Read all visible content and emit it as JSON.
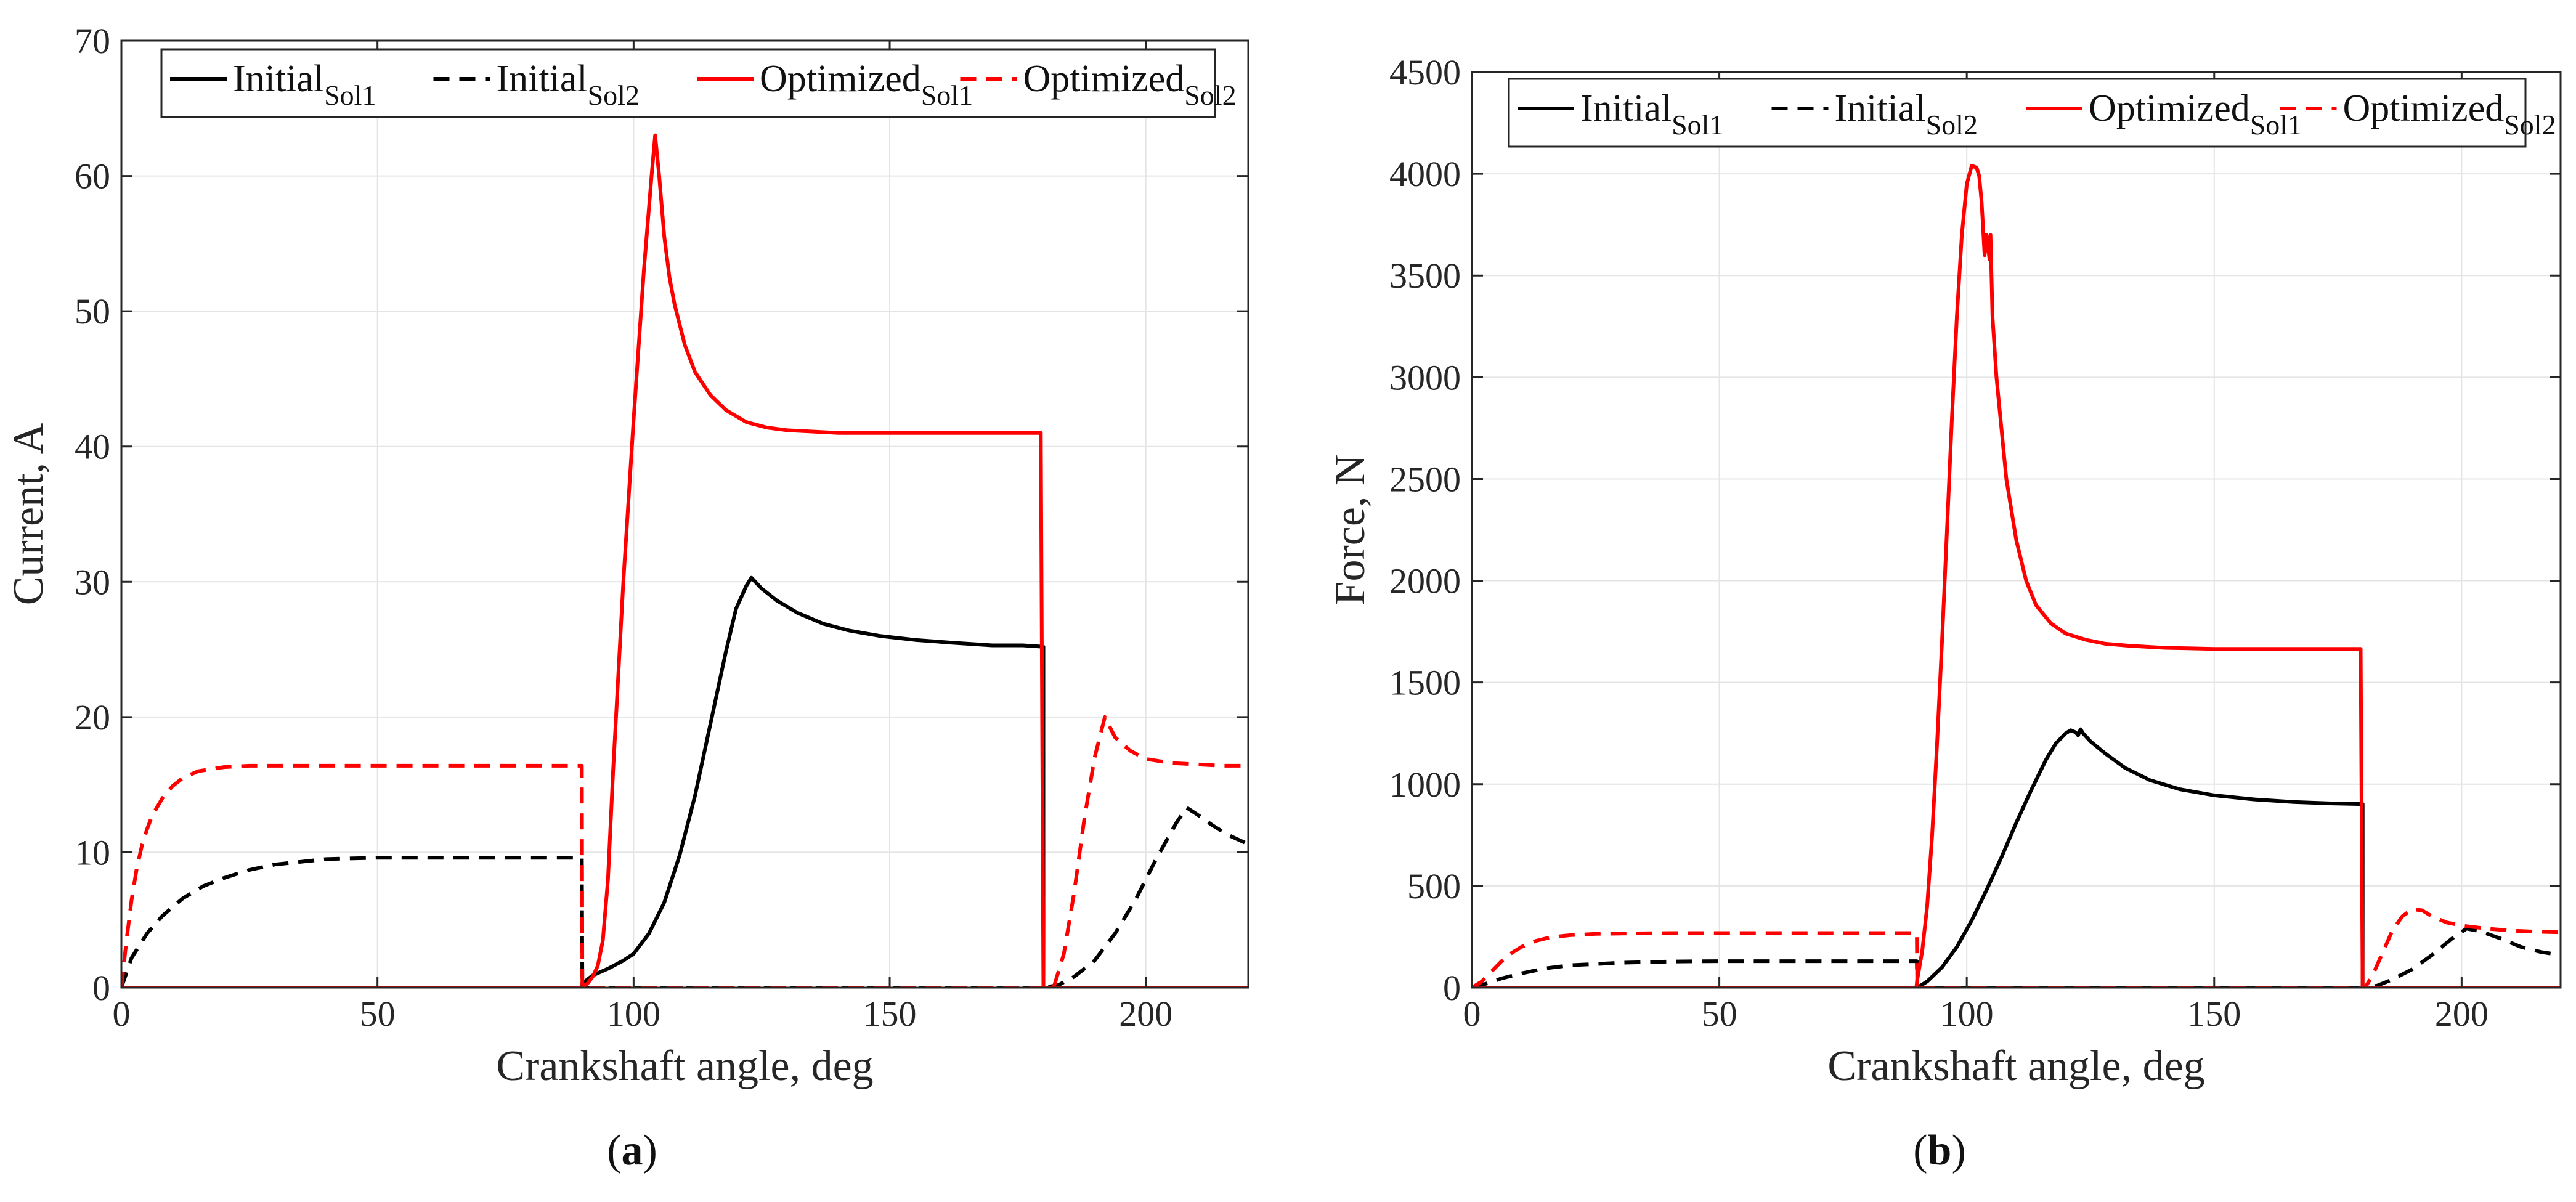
{
  "chart_data": [
    {
      "type": "line",
      "panel_label": "a",
      "xlabel": "Crankshaft angle, deg",
      "ylabel": "Current, A",
      "xlim": [
        0,
        220
      ],
      "ylim": [
        0,
        70
      ],
      "xticks": [
        0,
        50,
        100,
        150,
        200
      ],
      "yticks": [
        0,
        10,
        20,
        30,
        40,
        50,
        60,
        70
      ],
      "grid": true,
      "legend": {
        "placement": "top",
        "orientation": "horizontal"
      },
      "series": [
        {
          "name": "Initial",
          "subscript": "Sol1",
          "color": "#000000",
          "style": "solid",
          "x": [
            0,
            90,
            90,
            92,
            95,
            98,
            100,
            103,
            106,
            109,
            112,
            115,
            118,
            120,
            122,
            123,
            125,
            128,
            132,
            137,
            142,
            148,
            155,
            162,
            170,
            176,
            180,
            180,
            220
          ],
          "y": [
            0,
            0,
            0.3,
            0.9,
            1.4,
            2.0,
            2.5,
            4.0,
            6.3,
            9.8,
            14.2,
            19.5,
            24.8,
            28.0,
            29.7,
            30.3,
            29.5,
            28.6,
            27.7,
            26.9,
            26.4,
            26.0,
            25.7,
            25.5,
            25.3,
            25.3,
            25.2,
            0,
            0
          ]
        },
        {
          "name": "Initial",
          "subscript": "Sol2",
          "color": "#000000",
          "style": "dashed",
          "x": [
            0,
            2,
            5,
            8,
            12,
            16,
            20,
            25,
            30,
            35,
            40,
            50,
            60,
            70,
            80,
            89.9,
            90,
            180,
            183,
            186,
            190,
            194,
            198,
            202,
            206,
            208,
            210,
            213,
            216,
            220
          ],
          "y": [
            0,
            2.2,
            4.0,
            5.3,
            6.6,
            7.5,
            8.1,
            8.7,
            9.1,
            9.3,
            9.5,
            9.6,
            9.6,
            9.6,
            9.6,
            9.6,
            0,
            0,
            0.2,
            0.8,
            2.0,
            4.0,
            6.5,
            9.5,
            12.2,
            13.3,
            12.8,
            12.0,
            11.3,
            10.6
          ]
        },
        {
          "name": "Optimized",
          "subscript": "Sol1",
          "color": "#ff0000",
          "style": "solid",
          "x": [
            0,
            89.5,
            90,
            91,
            92,
            93,
            94,
            95,
            96,
            98,
            100,
            102,
            103.5,
            104.2,
            105,
            106,
            107,
            108,
            110,
            112,
            115,
            118,
            122,
            126,
            130,
            140,
            150,
            165,
            179.5,
            180,
            181,
            220
          ],
          "y": [
            0,
            0,
            0.05,
            0.3,
            0.8,
            1.6,
            3.5,
            8.0,
            16.0,
            30.0,
            42.0,
            53.0,
            60.0,
            63.0,
            60.0,
            55.5,
            52.5,
            50.5,
            47.5,
            45.5,
            43.8,
            42.7,
            41.8,
            41.4,
            41.2,
            41.0,
            41.0,
            41.0,
            41.0,
            0,
            0,
            0
          ]
        },
        {
          "name": "Optimized",
          "subscript": "Sol2",
          "color": "#ff0000",
          "style": "dashed",
          "x": [
            0,
            1,
            2,
            3,
            4,
            5,
            6,
            8,
            10,
            12,
            15,
            20,
            25,
            30,
            40,
            50,
            70,
            89.9,
            90,
            182,
            184,
            186,
            188,
            190,
            192,
            194,
            197,
            200,
            205,
            210,
            215,
            220
          ],
          "y": [
            0,
            3.5,
            6.5,
            8.8,
            10.5,
            11.7,
            12.7,
            14.0,
            14.9,
            15.5,
            16.0,
            16.3,
            16.4,
            16.4,
            16.4,
            16.4,
            16.4,
            16.4,
            0,
            0,
            2.5,
            7.0,
            12.5,
            17.0,
            20.0,
            18.5,
            17.5,
            16.9,
            16.6,
            16.5,
            16.4,
            16.4
          ]
        }
      ]
    },
    {
      "type": "line",
      "panel_label": "b",
      "xlabel": "Crankshaft angle, deg",
      "ylabel": "Force, N",
      "xlim": [
        0,
        220
      ],
      "ylim": [
        0,
        4500
      ],
      "xticks": [
        0,
        50,
        100,
        150,
        200
      ],
      "yticks": [
        0,
        500,
        1000,
        1500,
        2000,
        2500,
        3000,
        3500,
        4000,
        4500
      ],
      "grid": true,
      "legend": {
        "placement": "top",
        "orientation": "horizontal"
      },
      "series": [
        {
          "name": "Initial",
          "subscript": "Sol1",
          "color": "#000000",
          "style": "solid",
          "x": [
            0,
            90,
            92,
            95,
            98,
            101,
            104,
            107,
            110,
            113,
            116,
            118,
            120,
            121,
            122,
            122.5,
            123,
            123.5,
            125,
            128,
            132,
            137,
            143,
            150,
            158,
            166,
            174,
            180,
            180,
            220
          ],
          "y": [
            0,
            0,
            30,
            100,
            200,
            330,
            480,
            640,
            810,
            970,
            1120,
            1200,
            1250,
            1265,
            1255,
            1240,
            1270,
            1250,
            1210,
            1150,
            1080,
            1020,
            975,
            945,
            925,
            912,
            905,
            902,
            0,
            0
          ]
        },
        {
          "name": "Initial",
          "subscript": "Sol2",
          "color": "#000000",
          "style": "dashed",
          "x": [
            0,
            3,
            6,
            10,
            15,
            20,
            30,
            40,
            50,
            60,
            70,
            80,
            89.9,
            90,
            180,
            183,
            186,
            190,
            194,
            198,
            201,
            204,
            208,
            212,
            216,
            220
          ],
          "y": [
            0,
            20,
            45,
            70,
            95,
            110,
            122,
            128,
            130,
            130,
            130,
            130,
            130,
            0,
            0,
            10,
            40,
            90,
            160,
            240,
            290,
            275,
            240,
            200,
            175,
            160
          ]
        },
        {
          "name": "Optimized",
          "subscript": "Sol1",
          "color": "#ff0000",
          "style": "solid",
          "x": [
            0,
            89.8,
            90,
            91,
            92,
            93,
            94,
            95,
            96,
            97,
            98,
            99,
            100,
            101,
            102,
            102.5,
            103,
            103.6,
            104,
            104.6,
            104.8,
            105.2,
            106,
            107,
            108,
            110,
            112,
            114,
            117,
            120,
            124,
            128,
            133,
            140,
            150,
            165,
            179.6,
            180,
            220
          ],
          "y": [
            0,
            0,
            40,
            180,
            400,
            750,
            1200,
            1700,
            2250,
            2800,
            3300,
            3700,
            3950,
            4040,
            4030,
            3990,
            3860,
            3600,
            3700,
            3580,
            3700,
            3300,
            3000,
            2750,
            2500,
            2200,
            2000,
            1880,
            1790,
            1740,
            1710,
            1690,
            1680,
            1670,
            1665,
            1665,
            1665,
            0,
            0
          ]
        },
        {
          "name": "Optimized",
          "subscript": "Sol2",
          "color": "#ff0000",
          "style": "dashed",
          "x": [
            0,
            2,
            4,
            6,
            8,
            10,
            13,
            16,
            20,
            25,
            30,
            40,
            60,
            89.9,
            90,
            180.5,
            182,
            184,
            186,
            188,
            190,
            192,
            194,
            197,
            200,
            205,
            210,
            215,
            220
          ],
          "y": [
            0,
            30,
            80,
            130,
            170,
            200,
            230,
            248,
            258,
            264,
            266,
            268,
            268,
            268,
            0,
            0,
            60,
            170,
            280,
            350,
            385,
            380,
            350,
            320,
            305,
            290,
            280,
            275,
            272
          ]
        }
      ]
    }
  ]
}
